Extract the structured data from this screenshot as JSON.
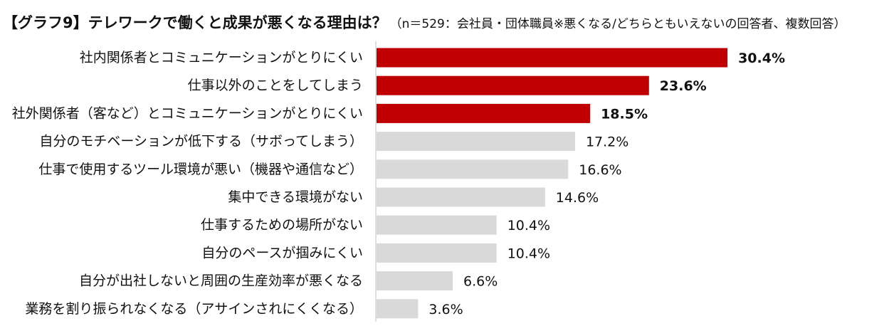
{
  "title": "【グラフ9】テレワークで働くと成果が悪くなる理由は？",
  "note": "（n＝529：会社員・団体職員※悪くなる/どちらともいえないの回答者、複数回答）",
  "chart_data": {
    "type": "bar",
    "orientation": "horizontal",
    "title": "【グラフ9】テレワークで働くと成果が悪くなる理由は？",
    "subtitle": "（n＝529：会社員・団体職員※悪くなる/どちらともいえないの回答者、複数回答）",
    "categories": [
      "社内関係者とコミュニケーションがとりにくい",
      "仕事以外のことをしてしまう",
      "社外関係者（客など）とコミュニケーションがとりにくい",
      "自分のモチベーションが低下する（サボってしまう）",
      "仕事で使用するツール環境が悪い（機器や通信など）",
      "集中できる環境がない",
      "仕事するための場所がない",
      "自分のペースが掴みにくい",
      "自分が出社しないと周囲の生産効率が悪くなる",
      "業務を割り振られなくなる（アサインされにくくなる）"
    ],
    "values": [
      30.4,
      23.6,
      18.5,
      17.2,
      16.6,
      14.6,
      10.4,
      10.4,
      6.6,
      3.6
    ],
    "value_labels": [
      "30.4%",
      "23.6%",
      "18.5%",
      "17.2%",
      "16.6%",
      "14.6%",
      "10.4%",
      "10.4%",
      "6.6%",
      "3.6%"
    ],
    "highlight_top_n": 3,
    "colors": {
      "highlight": "#c00000",
      "default": "#d9d9d9",
      "axis": "#bfbfbf"
    },
    "xlim": [
      0,
      35
    ],
    "grid": false,
    "legend": "none"
  }
}
